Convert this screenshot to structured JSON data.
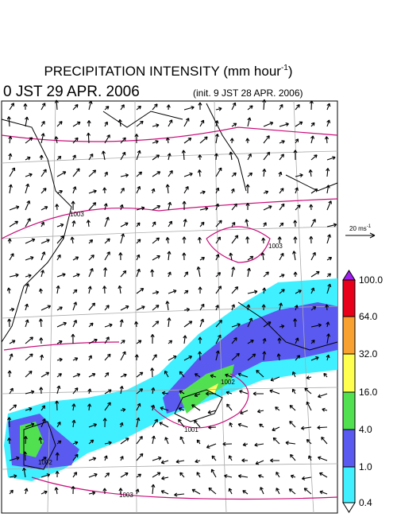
{
  "header": {
    "title": "PRECIPITATION INTENSITY (mm hour",
    "title_unit_exp": "-1",
    "title_close": ")",
    "valid_time": "0 JST 29 APR. 2006",
    "init_time": "(init. 9 JST 28 APR. 2006)"
  },
  "vector_scale": {
    "label": "20 ms",
    "exp": "-1"
  },
  "colorbar": {
    "labels": [
      "100.0",
      "64.0",
      "32.0",
      "16.0",
      "4.0",
      "1.0",
      "0.4"
    ]
  },
  "isobars": {
    "labels": [
      "1003",
      "1003",
      "1002",
      "1001",
      "1002",
      "1003"
    ]
  }
}
